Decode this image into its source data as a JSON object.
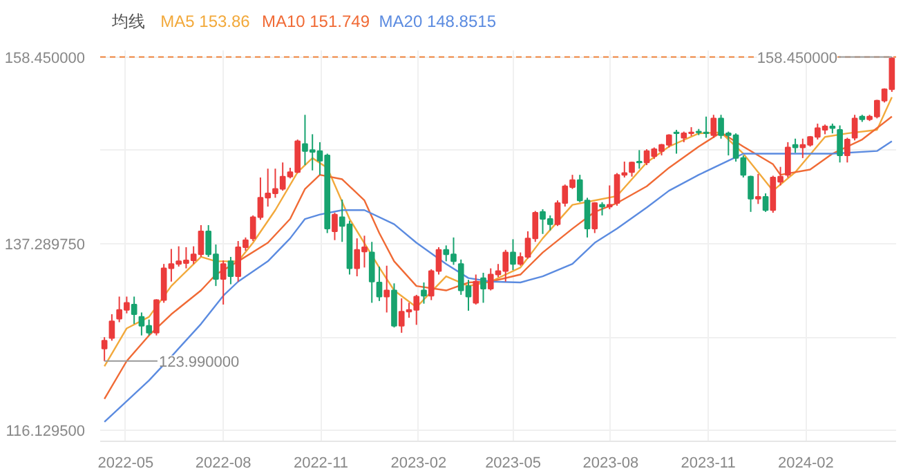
{
  "chart_data": {
    "type": "candlestick",
    "legend_title": "均线",
    "legend": "top left",
    "grid": true,
    "marker": "none",
    "x": [
      "2022-04-11",
      "2022-04-18",
      "2022-04-25",
      "2022-05-02",
      "2022-05-09",
      "2022-05-16",
      "2022-05-23",
      "2022-05-30",
      "2022-06-06",
      "2022-06-13",
      "2022-06-20",
      "2022-06-27",
      "2022-07-04",
      "2022-07-11",
      "2022-07-18",
      "2022-07-25",
      "2022-08-01",
      "2022-08-08",
      "2022-08-15",
      "2022-08-22",
      "2022-08-29",
      "2022-09-05",
      "2022-09-12",
      "2022-09-19",
      "2022-09-26",
      "2022-10-03",
      "2022-10-10",
      "2022-10-17",
      "2022-10-24",
      "2022-10-31",
      "2022-11-07",
      "2022-11-14",
      "2022-11-21",
      "2022-11-28",
      "2022-12-05",
      "2022-12-12",
      "2022-12-19",
      "2022-12-26",
      "2023-01-02",
      "2023-01-09",
      "2023-01-16",
      "2023-01-23",
      "2023-01-30",
      "2023-02-06",
      "2023-02-13",
      "2023-02-20",
      "2023-02-27",
      "2023-03-06",
      "2023-03-13",
      "2023-03-20",
      "2023-03-27",
      "2023-04-03",
      "2023-04-10",
      "2023-04-17",
      "2023-04-24",
      "2023-05-01",
      "2023-05-08",
      "2023-05-15",
      "2023-05-22",
      "2023-05-29",
      "2023-06-05",
      "2023-06-12",
      "2023-06-19",
      "2023-06-26",
      "2023-07-03",
      "2023-07-10",
      "2023-07-17",
      "2023-07-24",
      "2023-07-31",
      "2023-08-07",
      "2023-08-14",
      "2023-08-21",
      "2023-08-28",
      "2023-09-04",
      "2023-09-11",
      "2023-09-18",
      "2023-09-25",
      "2023-10-02",
      "2023-10-09",
      "2023-10-16",
      "2023-10-23",
      "2023-10-30",
      "2023-11-06",
      "2023-11-13",
      "2023-11-20",
      "2023-11-27",
      "2023-12-04",
      "2023-12-11",
      "2023-12-18",
      "2023-12-25",
      "2024-01-01",
      "2024-01-08",
      "2024-01-15",
      "2024-01-22",
      "2024-01-29",
      "2024-02-05",
      "2024-02-12",
      "2024-02-19",
      "2024-02-26",
      "2024-03-04",
      "2024-03-11",
      "2024-03-18",
      "2024-03-25",
      "2024-04-01",
      "2024-04-08",
      "2024-04-15",
      "2024-04-22"
    ],
    "ohlc": [
      [
        125.4,
        126.7,
        123.99,
        126.3
      ],
      [
        126.6,
        129.3,
        126.3,
        128.5
      ],
      [
        128.8,
        131.3,
        128.4,
        129.8
      ],
      [
        129.8,
        131.3,
        129.4,
        130.6
      ],
      [
        130.4,
        131.3,
        128.2,
        129.3
      ],
      [
        129.0,
        129.5,
        126.9,
        128.0
      ],
      [
        128.0,
        128.7,
        126.9,
        127.2
      ],
      [
        127.2,
        131.0,
        126.9,
        130.9
      ],
      [
        130.9,
        135.0,
        130.6,
        134.5
      ],
      [
        134.5,
        136.7,
        133.0,
        135.0
      ],
      [
        135.0,
        137.0,
        134.7,
        135.3
      ],
      [
        135.1,
        136.9,
        134.5,
        135.4
      ],
      [
        135.4,
        137.0,
        135.0,
        136.1
      ],
      [
        136.1,
        139.4,
        135.8,
        138.7
      ],
      [
        138.7,
        139.4,
        135.8,
        136.1
      ],
      [
        136.1,
        137.2,
        132.5,
        133.3
      ],
      [
        133.3,
        135.4,
        130.4,
        135.0
      ],
      [
        135.3,
        135.8,
        132.7,
        133.6
      ],
      [
        133.6,
        137.6,
        133.0,
        136.9
      ],
      [
        136.9,
        138.0,
        136.5,
        137.7
      ],
      [
        137.9,
        140.5,
        137.6,
        140.3
      ],
      [
        140.3,
        144.8,
        140.0,
        142.5
      ],
      [
        142.5,
        145.8,
        141.5,
        143.0
      ],
      [
        143.0,
        145.8,
        142.5,
        143.5
      ],
      [
        143.5,
        146.5,
        143.3,
        144.9
      ],
      [
        144.9,
        145.9,
        144.7,
        145.4
      ],
      [
        145.4,
        149.1,
        145.3,
        148.9
      ],
      [
        148.6,
        151.9,
        146.2,
        147.8
      ],
      [
        147.9,
        149.7,
        145.6,
        147.7
      ],
      [
        147.8,
        148.8,
        145.1,
        146.7
      ],
      [
        147.3,
        147.5,
        138.5,
        139.0
      ],
      [
        138.7,
        140.8,
        137.7,
        140.6
      ],
      [
        140.3,
        142.3,
        137.5,
        139.3
      ],
      [
        139.5,
        139.9,
        133.8,
        134.5
      ],
      [
        134.5,
        137.9,
        133.6,
        136.6
      ],
      [
        136.4,
        138.2,
        134.6,
        136.9
      ],
      [
        136.3,
        137.5,
        130.6,
        133.0
      ],
      [
        132.9,
        134.7,
        130.8,
        131.3
      ],
      [
        131.3,
        134.8,
        129.5,
        132.0
      ],
      [
        132.0,
        132.8,
        127.8,
        128.0
      ],
      [
        128.0,
        131.1,
        127.2,
        129.6
      ],
      [
        129.6,
        130.6,
        128.9,
        129.8
      ],
      [
        129.8,
        131.5,
        128.1,
        131.3
      ],
      [
        132.0,
        132.9,
        130.5,
        131.4
      ],
      [
        131.4,
        134.4,
        130.9,
        134.2
      ],
      [
        134.2,
        136.9,
        133.8,
        136.6
      ],
      [
        136.6,
        137.1,
        135.3,
        136.1
      ],
      [
        136.1,
        138.0,
        134.9,
        135.3
      ],
      [
        135.0,
        135.5,
        131.5,
        132.0
      ],
      [
        132.5,
        133.2,
        129.7,
        131.3
      ],
      [
        130.6,
        133.8,
        130.4,
        133.0
      ],
      [
        133.4,
        134.0,
        130.6,
        132.2
      ],
      [
        132.2,
        134.5,
        132.0,
        133.8
      ],
      [
        133.8,
        135.0,
        133.5,
        134.2
      ],
      [
        134.2,
        136.6,
        133.0,
        136.3
      ],
      [
        136.3,
        137.8,
        134.3,
        135.0
      ],
      [
        135.0,
        136.3,
        134.8,
        135.8
      ],
      [
        135.8,
        138.7,
        135.6,
        137.9
      ],
      [
        137.9,
        141.0,
        137.5,
        140.8
      ],
      [
        140.9,
        141.2,
        138.4,
        140.1
      ],
      [
        140.1,
        140.5,
        138.8,
        139.5
      ],
      [
        139.5,
        142.2,
        139.3,
        141.9
      ],
      [
        141.9,
        144.0,
        141.5,
        143.8
      ],
      [
        143.7,
        145.1,
        143.5,
        144.5
      ],
      [
        144.5,
        145.1,
        142.0,
        142.2
      ],
      [
        142.2,
        142.5,
        138.0,
        139.0
      ],
      [
        139.0,
        142.0,
        138.5,
        141.9
      ],
      [
        141.7,
        142.0,
        140.5,
        141.5
      ],
      [
        141.5,
        143.9,
        141.2,
        141.7
      ],
      [
        141.9,
        145.3,
        141.6,
        145.1
      ],
      [
        145.1,
        146.6,
        144.8,
        145.3
      ],
      [
        145.4,
        146.6,
        144.9,
        146.5
      ],
      [
        146.6,
        147.9,
        145.8,
        146.5
      ],
      [
        146.5,
        148.0,
        146.2,
        147.8
      ],
      [
        147.2,
        148.2,
        146.9,
        148.0
      ],
      [
        147.8,
        148.6,
        147.3,
        148.5
      ],
      [
        148.5,
        149.7,
        148.2,
        149.6
      ],
      [
        149.9,
        150.2,
        147.5,
        149.8
      ],
      [
        149.3,
        150.0,
        148.8,
        149.8
      ],
      [
        149.8,
        150.5,
        149.5,
        149.9
      ],
      [
        150.0,
        150.3,
        149.6,
        149.9
      ],
      [
        149.9,
        151.7,
        149.3,
        149.8
      ],
      [
        149.6,
        151.9,
        149.3,
        151.5
      ],
      [
        151.5,
        151.9,
        149.2,
        149.6
      ],
      [
        149.8,
        150.0,
        147.3,
        149.6
      ],
      [
        149.6,
        149.8,
        146.6,
        147.0
      ],
      [
        147.0,
        147.3,
        144.8,
        145.1
      ],
      [
        144.9,
        145.0,
        140.9,
        142.4
      ],
      [
        142.4,
        145.2,
        141.8,
        142.6
      ],
      [
        142.6,
        143.0,
        140.9,
        141.1
      ],
      [
        141.1,
        145.0,
        140.8,
        144.8
      ],
      [
        144.3,
        146.0,
        143.9,
        144.9
      ],
      [
        145.1,
        148.8,
        144.8,
        148.2
      ],
      [
        148.5,
        149.2,
        147.6,
        148.2
      ],
      [
        148.2,
        149.2,
        147.0,
        148.5
      ],
      [
        148.5,
        149.5,
        148.3,
        149.4
      ],
      [
        149.4,
        150.9,
        149.1,
        150.4
      ],
      [
        150.2,
        150.8,
        149.7,
        150.6
      ],
      [
        150.6,
        150.9,
        149.8,
        150.4
      ],
      [
        150.2,
        150.7,
        146.5,
        147.3
      ],
      [
        147.3,
        149.3,
        146.5,
        149.1
      ],
      [
        149.3,
        151.9,
        149.0,
        151.5
      ],
      [
        151.7,
        151.9,
        151.1,
        151.4
      ],
      [
        151.4,
        151.9,
        151.2,
        151.7
      ],
      [
        151.7,
        153.6,
        151.5,
        153.5
      ],
      [
        153.5,
        154.9,
        153.3,
        154.8
      ],
      [
        154.8,
        158.45,
        154.5,
        158.3
      ]
    ],
    "colors": [
      "#eb3c3c",
      "#eb3c3c",
      "#eb3c3c",
      "#eb3c3c",
      "#17a36f",
      "#17a36f",
      "#17a36f",
      "#eb3c3c",
      "#eb3c3c",
      "#eb3c3c",
      "#eb3c3c",
      "#eb3c3c",
      "#eb3c3c",
      "#eb3c3c",
      "#17a36f",
      "#17a36f",
      "#eb3c3c",
      "#17a36f",
      "#eb3c3c",
      "#eb3c3c",
      "#eb3c3c",
      "#eb3c3c",
      "#eb3c3c",
      "#eb3c3c",
      "#eb3c3c",
      "#eb3c3c",
      "#eb3c3c",
      "#17a36f",
      "#17a36f",
      "#17a36f",
      "#17a36f",
      "#eb3c3c",
      "#17a36f",
      "#17a36f",
      "#eb3c3c",
      "#eb3c3c",
      "#17a36f",
      "#17a36f",
      "#eb3c3c",
      "#17a36f",
      "#eb3c3c",
      "#eb3c3c",
      "#eb3c3c",
      "#17a36f",
      "#eb3c3c",
      "#eb3c3c",
      "#17a36f",
      "#17a36f",
      "#17a36f",
      "#17a36f",
      "#eb3c3c",
      "#17a36f",
      "#eb3c3c",
      "#eb3c3c",
      "#eb3c3c",
      "#17a36f",
      "#eb3c3c",
      "#eb3c3c",
      "#eb3c3c",
      "#17a36f",
      "#17a36f",
      "#eb3c3c",
      "#eb3c3c",
      "#eb3c3c",
      "#17a36f",
      "#17a36f",
      "#eb3c3c",
      "#17a36f",
      "#eb3c3c",
      "#eb3c3c",
      "#eb3c3c",
      "#eb3c3c",
      "#17a36f",
      "#eb3c3c",
      "#eb3c3c",
      "#eb3c3c",
      "#eb3c3c",
      "#17a36f",
      "#eb3c3c",
      "#eb3c3c",
      "#17a36f",
      "#17a36f",
      "#eb3c3c",
      "#17a36f",
      "#17a36f",
      "#17a36f",
      "#17a36f",
      "#17a36f",
      "#eb3c3c",
      "#17a36f",
      "#eb3c3c",
      "#eb3c3c",
      "#eb3c3c",
      "#17a36f",
      "#eb3c3c",
      "#eb3c3c",
      "#eb3c3c",
      "#eb3c3c",
      "#17a36f",
      "#17a36f",
      "#eb3c3c",
      "#eb3c3c",
      "#17a36f",
      "#eb3c3c",
      "#eb3c3c",
      "#eb3c3c",
      "#eb3c3c"
    ],
    "series": [
      {
        "type": "line",
        "name": "MA5 153.86",
        "color": "#f2a93b",
        "x": [
          "2022-04-11",
          "2022-05-02",
          "2022-05-23",
          "2022-06-13",
          "2022-07-11",
          "2022-07-25",
          "2022-08-15",
          "2022-08-29",
          "2022-09-19",
          "2022-10-10",
          "2022-10-24",
          "2022-11-07",
          "2022-11-28",
          "2022-12-26",
          "2023-01-09",
          "2023-01-30",
          "2023-02-27",
          "2023-03-20",
          "2023-04-10",
          "2023-05-08",
          "2023-05-29",
          "2023-06-26",
          "2023-07-17",
          "2023-08-07",
          "2023-09-04",
          "2023-09-25",
          "2023-10-23",
          "2023-11-13",
          "2023-12-04",
          "2024-01-01",
          "2024-01-22",
          "2024-02-19",
          "2024-03-11",
          "2024-04-08",
          "2024-04-22"
        ],
        "values": [
          123.4,
          127.7,
          129.0,
          132.5,
          135.8,
          135.3,
          135.3,
          137.4,
          141.1,
          145.4,
          147.0,
          145.9,
          140.1,
          134.6,
          132.0,
          130.1,
          133.6,
          132.5,
          133.0,
          134.6,
          137.9,
          141.7,
          142.2,
          142.7,
          146.5,
          148.3,
          149.8,
          149.9,
          147.5,
          143.3,
          145.4,
          149.4,
          149.8,
          150.2,
          153.9
        ]
      },
      {
        "type": "line",
        "name": "MA10 151.749",
        "color": "#f06a35",
        "x": [
          "2022-04-11",
          "2022-05-02",
          "2022-05-23",
          "2022-06-13",
          "2022-07-11",
          "2022-07-25",
          "2022-08-15",
          "2022-09-12",
          "2022-10-03",
          "2022-10-17",
          "2022-10-31",
          "2022-11-21",
          "2022-12-12",
          "2022-12-26",
          "2023-01-09",
          "2023-01-30",
          "2023-02-27",
          "2023-03-20",
          "2023-04-10",
          "2023-05-08",
          "2023-05-29",
          "2023-06-26",
          "2023-07-17",
          "2023-08-07",
          "2023-09-04",
          "2023-09-25",
          "2023-10-23",
          "2023-11-13",
          "2023-12-04",
          "2024-01-01",
          "2024-01-08",
          "2024-02-05",
          "2024-02-26",
          "2024-03-25",
          "2024-04-22"
        ],
        "values": [
          119.7,
          124.0,
          126.9,
          129.3,
          132.0,
          133.8,
          135.3,
          137.4,
          140.1,
          143.5,
          145.1,
          144.6,
          142.2,
          138.5,
          135.3,
          132.5,
          132.0,
          132.9,
          133.0,
          133.8,
          136.3,
          139.0,
          140.9,
          141.9,
          143.8,
          145.9,
          148.3,
          149.9,
          148.3,
          146.3,
          145.1,
          145.7,
          147.5,
          149.1,
          151.7
        ]
      },
      {
        "type": "line",
        "name": "MA20 148.8515",
        "color": "#5b8be0",
        "x": [
          "2022-04-11",
          "2022-05-23",
          "2022-06-13",
          "2022-07-11",
          "2022-08-01",
          "2022-08-15",
          "2022-09-12",
          "2022-10-03",
          "2022-10-17",
          "2022-10-31",
          "2022-11-21",
          "2022-12-12",
          "2023-01-09",
          "2023-01-30",
          "2023-02-27",
          "2023-03-20",
          "2023-04-10",
          "2023-05-08",
          "2023-05-29",
          "2023-06-26",
          "2023-07-17",
          "2023-08-07",
          "2023-09-04",
          "2023-09-25",
          "2023-10-23",
          "2023-11-20",
          "2023-12-04",
          "2024-01-01",
          "2024-02-05",
          "2024-02-26",
          "2024-04-08",
          "2024-04-22"
        ],
        "values": [
          117.1,
          121.8,
          124.5,
          128.2,
          131.4,
          133.0,
          135.3,
          137.9,
          140.1,
          140.6,
          141.1,
          141.1,
          139.5,
          137.4,
          135.0,
          133.4,
          133.0,
          132.9,
          133.6,
          135.0,
          137.4,
          139.0,
          141.4,
          143.3,
          145.1,
          146.7,
          147.5,
          147.5,
          147.5,
          147.5,
          147.8,
          148.9
        ]
      }
    ],
    "xlim": [
      "2022-04-07",
      "2024-04-26"
    ],
    "xticks": [
      {
        "value": "2022-05-01",
        "label": "2022-05"
      },
      {
        "value": "2022-08-01",
        "label": "2022-08"
      },
      {
        "value": "2022-11-01",
        "label": "2022-11"
      },
      {
        "value": "2023-02-01",
        "label": "2023-02"
      },
      {
        "value": "2023-05-01",
        "label": "2023-05"
      },
      {
        "value": "2023-08-01",
        "label": "2023-08"
      },
      {
        "value": "2023-11-01",
        "label": "2023-11"
      },
      {
        "value": "2024-02-01",
        "label": "2024-02"
      }
    ],
    "ylim": [
      114.9,
      159.2
    ],
    "yticks": [
      {
        "value": 158.45,
        "label": "158.450000"
      },
      {
        "value": 147.86975,
        "label": null
      },
      {
        "value": 137.28975,
        "label": "137.289750"
      },
      {
        "value": 126.70975,
        "label": null
      },
      {
        "value": 116.1295,
        "label": "116.129500"
      }
    ],
    "ref_lines": [
      {
        "axis": "y",
        "value": 158.45,
        "color": "#f0843c",
        "line_style": "dashed"
      }
    ],
    "annotations": [
      {
        "text": "158.450000",
        "x": "2024-04-22",
        "y": 158.45
      },
      {
        "text": "123.990000",
        "x": "2022-04-11",
        "y": 123.99
      }
    ]
  }
}
